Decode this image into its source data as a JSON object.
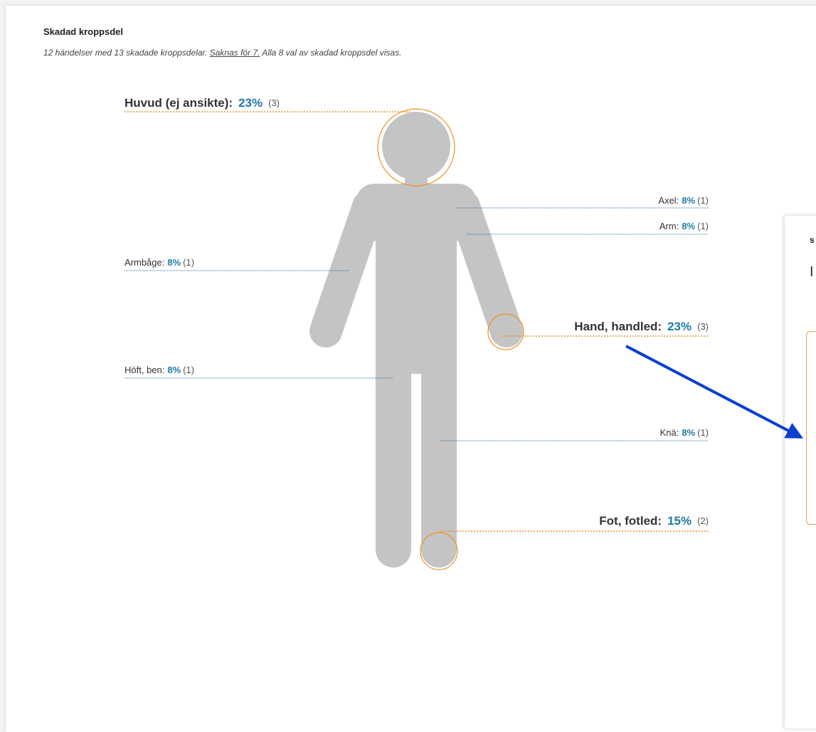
{
  "header": {
    "title": "Skadad kroppsdel",
    "summary": "12 händelser med 13 skadade kroppsdelar.",
    "missing_link": "Saknas för 7.",
    "note": "Alla 8 val av skadad kroppsdel visas."
  },
  "body_parts": [
    {
      "name": "Huvud (ej ansikte):",
      "pct": "23%",
      "count": "(3)"
    },
    {
      "name": "Axel:",
      "pct": "8%",
      "count": "(1)"
    },
    {
      "name": "Arm:",
      "pct": "8%",
      "count": "(1)"
    },
    {
      "name": "Armbåge:",
      "pct": "8%",
      "count": "(1)"
    },
    {
      "name": "Hand, handled:",
      "pct": "23%",
      "count": "(3)"
    },
    {
      "name": "Höft, ben:",
      "pct": "8%",
      "count": "(1)"
    },
    {
      "name": "Knä:",
      "pct": "8%",
      "count": "(1)"
    },
    {
      "name": "Fot, fotled:",
      "pct": "15%",
      "count": "(2)"
    }
  ],
  "side_panel": {
    "label": "s",
    "heading": "I"
  }
}
